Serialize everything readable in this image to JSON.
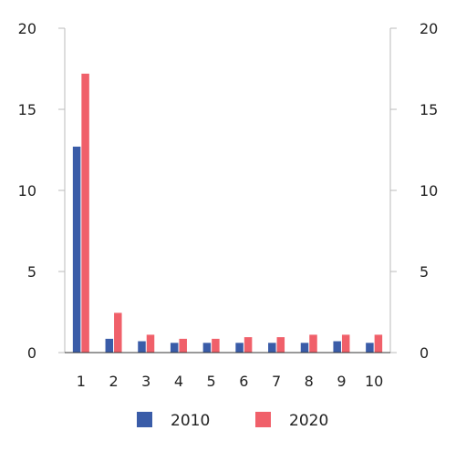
{
  "chart_data": {
    "type": "bar",
    "categories": [
      "1",
      "2",
      "3",
      "4",
      "5",
      "6",
      "7",
      "8",
      "9",
      "10"
    ],
    "series": [
      {
        "name": "2010",
        "color": "#3a5ca8",
        "values": [
          12.7,
          0.85,
          0.7,
          0.6,
          0.6,
          0.6,
          0.6,
          0.6,
          0.7,
          0.6
        ]
      },
      {
        "name": "2020",
        "color": "#f0606a",
        "values": [
          17.2,
          2.45,
          1.1,
          0.85,
          0.85,
          0.95,
          0.95,
          1.1,
          1.1,
          1.1
        ]
      }
    ],
    "ylim": [
      0,
      20
    ],
    "yticks": [
      "0",
      "5",
      "10",
      "15",
      "20"
    ],
    "secondary_y_axis": true,
    "grid": false,
    "legend_position": "bottom-center"
  }
}
